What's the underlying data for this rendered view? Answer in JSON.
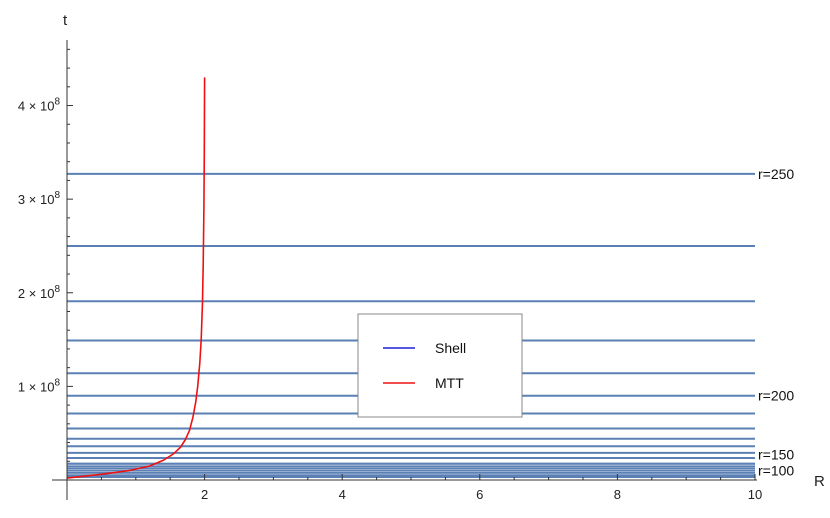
{
  "chart_data": {
    "type": "line",
    "title": "",
    "xlabel": "R",
    "ylabel": "t",
    "xlim": [
      0,
      10
    ],
    "ylim": [
      0,
      470000000.0
    ],
    "x_ticks": [
      {
        "value": 2,
        "label": "2"
      },
      {
        "value": 4,
        "label": "4"
      },
      {
        "value": 6,
        "label": "6"
      },
      {
        "value": 8,
        "label": "8"
      },
      {
        "value": 10,
        "label": "10"
      }
    ],
    "y_ticks": [
      {
        "value": 100000000.0,
        "mantissa": "1",
        "times": "×",
        "base": "10",
        "exp": "8"
      },
      {
        "value": 200000000.0,
        "mantissa": "2",
        "times": "×",
        "base": "10",
        "exp": "8"
      },
      {
        "value": 300000000.0,
        "mantissa": "3",
        "times": "×",
        "base": "10",
        "exp": "8"
      },
      {
        "value": 400000000.0,
        "mantissa": "4",
        "times": "×",
        "base": "10",
        "exp": "8"
      }
    ],
    "legend": {
      "position": "center-right",
      "entries": [
        {
          "name": "Shell",
          "color": "#1f1fd6"
        },
        {
          "name": "MTT",
          "color": "#ee1111"
        }
      ]
    },
    "shell_color": "#5b80b5",
    "shell_times": [
      3900000.0,
      7800000.0,
      12500000.0,
      17500000.0,
      23500000.0,
      29000000.0,
      36000000.0,
      44000000.0,
      55000000.0,
      71000000.0,
      90000000.0,
      114000000.0,
      149000000.0,
      191000000.0,
      250000000.0,
      327000000.0
    ],
    "shell_labels": [
      {
        "text": "r=100",
        "t": 10000000.0
      },
      {
        "text": "r=150",
        "t": 27500000.0
      },
      {
        "text": "r=200",
        "t": 90000000.0
      },
      {
        "text": "r=250",
        "t": 327000000.0
      }
    ],
    "series": [
      {
        "name": "MTT",
        "color": "#ee1111",
        "x": [
          0,
          0.3,
          0.6,
          0.9,
          1.2,
          1.4,
          1.55,
          1.65,
          1.72,
          1.78,
          1.83,
          1.87,
          1.9,
          1.93,
          1.95,
          1.97,
          1.98,
          1.99,
          1.995,
          2.0
        ],
        "y": [
          2000000.0,
          4500000.0,
          7000000.0,
          10000000.0,
          15000000.0,
          21000000.0,
          28000000.0,
          35000000.0,
          43000000.0,
          53000000.0,
          67000000.0,
          83000000.0,
          100000000.0,
          125000000.0,
          150000000.0,
          190000000.0,
          230000000.0,
          290000000.0,
          350000000.0,
          430000000.0
        ]
      }
    ]
  }
}
